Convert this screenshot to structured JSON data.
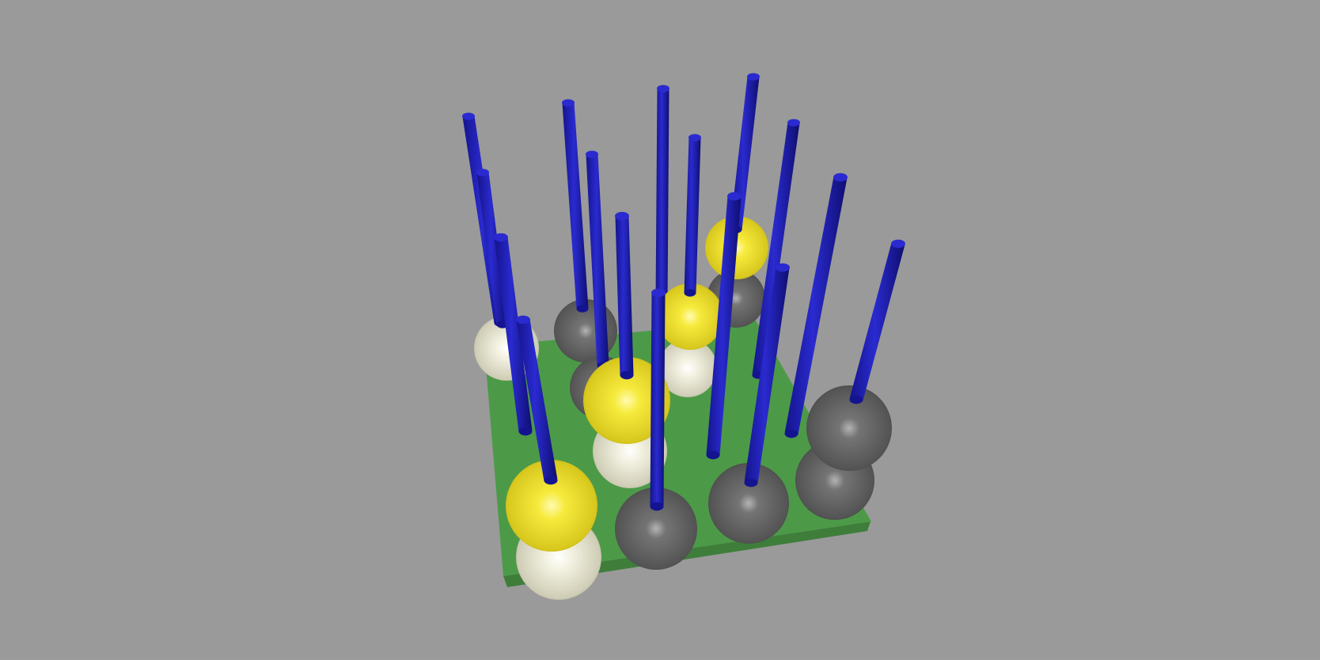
{
  "colors": {
    "background": "#9a9a9a",
    "board_top": "#4c9a48",
    "board_front": "#3f7d3b",
    "board_side": "#3a7236",
    "rod": "#1e1eb4",
    "rod_top": "#2a2ad0",
    "sphere_yellow": "#ecdf2a",
    "sphere_white": "#ecebd8",
    "sphere_black": "#5c5c5c"
  },
  "board": {
    "grid": "4x4",
    "pegs": [
      {
        "id": "1",
        "row": 1,
        "col": 1,
        "stack": [
          "white"
        ]
      },
      {
        "id": "2",
        "row": 1,
        "col": 2,
        "stack": [
          "black"
        ]
      },
      {
        "id": "3",
        "row": 1,
        "col": 3,
        "stack": []
      },
      {
        "id": "4",
        "row": 1,
        "col": 4,
        "stack": [
          "black",
          "yellow"
        ]
      },
      {
        "id": "5",
        "row": 2,
        "col": 1,
        "stack": []
      },
      {
        "id": "6",
        "row": 2,
        "col": 2,
        "stack": [
          "black"
        ]
      },
      {
        "id": "7",
        "row": 2,
        "col": 3,
        "stack": [
          "white",
          "yellow"
        ]
      },
      {
        "id": "8",
        "row": 2,
        "col": 4,
        "stack": []
      },
      {
        "id": "9",
        "row": 3,
        "col": 1,
        "stack": []
      },
      {
        "id": "10",
        "row": 3,
        "col": 2,
        "stack": [
          "white",
          "yellow"
        ]
      },
      {
        "id": "11",
        "row": 3,
        "col": 3,
        "stack": []
      },
      {
        "id": "12",
        "row": 3,
        "col": 4,
        "stack": [
          "black",
          "black"
        ]
      },
      {
        "id": "13",
        "row": 4,
        "col": 1,
        "stack": [
          "white",
          "yellow"
        ]
      },
      {
        "id": "14",
        "row": 4,
        "col": 2,
        "stack": [
          "black"
        ]
      },
      {
        "id": "15",
        "row": 4,
        "col": 3,
        "stack": [
          "black"
        ]
      },
      {
        "id": "16",
        "row": 4,
        "col": 4,
        "stack": []
      }
    ]
  }
}
